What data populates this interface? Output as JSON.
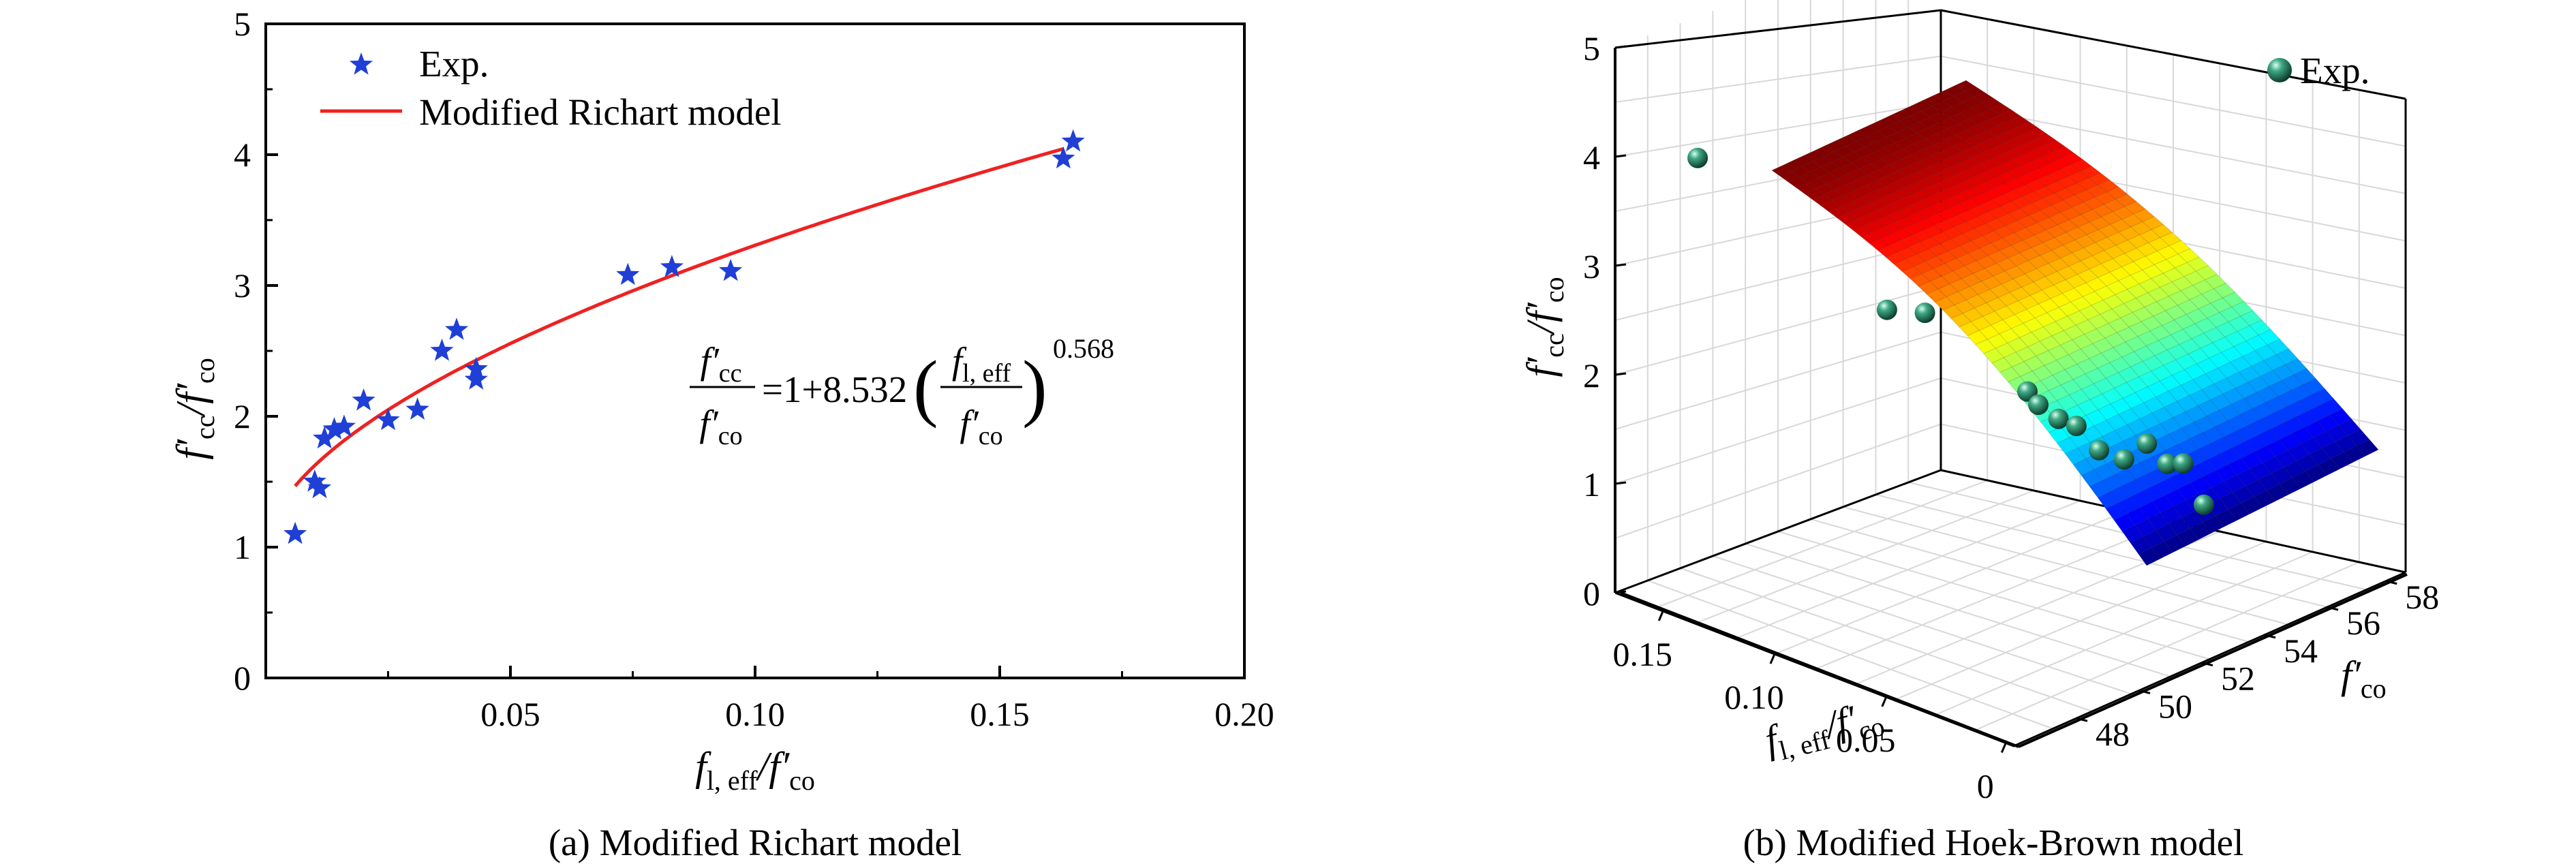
{
  "chart_data": [
    {
      "id": "panel-a",
      "type": "scatter",
      "caption": "(a) Modified Richart model",
      "xlabel": "f l, eff / f′co",
      "ylabel": "f′cc / f′co",
      "xlim": [
        0,
        0.2
      ],
      "ylim": [
        0,
        5
      ],
      "xticks": [
        "0.05",
        "0.10",
        "0.15",
        "0.20"
      ],
      "xtick_values": [
        0.05,
        0.1,
        0.15,
        0.2
      ],
      "yticks": [
        "0",
        "1",
        "2",
        "3",
        "4",
        "5"
      ],
      "ytick_values": [
        0,
        1,
        2,
        3,
        4,
        5
      ],
      "legend": {
        "placement": "top-left",
        "exp_label": "Exp.",
        "model_label": "Modified Richart model"
      },
      "equation": {
        "lhs_num": "f′cc",
        "lhs_den": "f′co",
        "rhs_const": "=1+8.532",
        "frac_num": "fl, eff",
        "frac_den": "f′co",
        "exponent": "0.568"
      },
      "model": {
        "a": 1,
        "k": 8.532,
        "n": 0.568,
        "x_range": [
          0.006,
          0.163
        ]
      },
      "series": [
        {
          "name": "Exp.",
          "points": [
            [
              0.006,
              1.1
            ],
            [
              0.01,
              1.5
            ],
            [
              0.011,
              1.45
            ],
            [
              0.012,
              1.83
            ],
            [
              0.014,
              1.9
            ],
            [
              0.016,
              1.92
            ],
            [
              0.02,
              2.12
            ],
            [
              0.025,
              1.97
            ],
            [
              0.031,
              2.05
            ],
            [
              0.036,
              2.5
            ],
            [
              0.039,
              2.66
            ],
            [
              0.043,
              2.28
            ],
            [
              0.043,
              2.36
            ],
            [
              0.074,
              3.08
            ],
            [
              0.083,
              3.14
            ],
            [
              0.095,
              3.11
            ],
            [
              0.163,
              3.97
            ],
            [
              0.165,
              4.1
            ]
          ]
        }
      ]
    },
    {
      "id": "panel-b",
      "type": "surface3d",
      "caption": "(b) Modified Hoek-Brown model",
      "xlabel": "f l, eff / f′co",
      "ylabel": "f′co",
      "zlabel": "f′cc / f′co",
      "zticks": [
        "0",
        "1",
        "2",
        "3",
        "4",
        "5"
      ],
      "xticks": [
        "0.15",
        "0.10",
        "0.05",
        "0"
      ],
      "yticks": [
        "48",
        "50",
        "52",
        "54",
        "56",
        "58"
      ],
      "legend": {
        "placement": "top-right",
        "exp_label": "Exp."
      },
      "colormap": "jet",
      "zrange": [
        1.3,
        4.0
      ],
      "points": [
        [
          0.165,
          49.5,
          4.1
        ],
        [
          0.095,
          51.0,
          3.11
        ],
        [
          0.083,
          51.5,
          3.14
        ],
        [
          0.043,
          52.0,
          2.66
        ],
        [
          0.043,
          52.5,
          2.5
        ],
        [
          0.039,
          53.0,
          2.36
        ],
        [
          0.036,
          53.5,
          2.28
        ],
        [
          0.031,
          54.0,
          2.05
        ],
        [
          0.025,
          54.5,
          1.97
        ],
        [
          0.02,
          55.0,
          2.12
        ],
        [
          0.016,
          55.5,
          1.92
        ],
        [
          0.014,
          56.0,
          1.9
        ],
        [
          0.01,
          56.5,
          1.5
        ]
      ]
    }
  ]
}
